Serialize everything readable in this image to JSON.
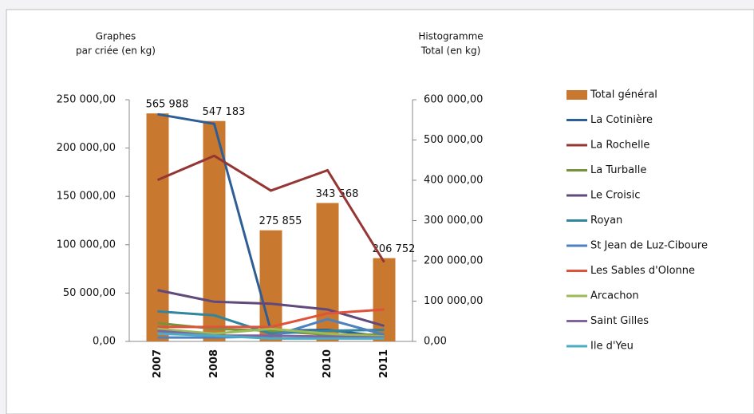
{
  "chart_data": {
    "type": "bar_line",
    "ylabel": [
      "Graphes",
      "par criée (en kg)"
    ],
    "y2label": [
      "Histogramme",
      "Total (en kg)"
    ],
    "categories": [
      "2007",
      "2008",
      "2009",
      "2010",
      "2011"
    ],
    "ylim": [
      0,
      250000
    ],
    "yticks": [
      {
        "value": 0,
        "label": "0,00"
      },
      {
        "value": 50000,
        "label": "50 000,00"
      },
      {
        "value": 100000,
        "label": "100 000,00"
      },
      {
        "value": 150000,
        "label": "150 000,00"
      },
      {
        "value": 200000,
        "label": "200 000,00"
      },
      {
        "value": 250000,
        "label": "250 000,00"
      }
    ],
    "y2lim": [
      0,
      600000
    ],
    "y2ticks": [
      {
        "value": 0,
        "label": "0,00"
      },
      {
        "value": 100000,
        "label": "100 000,00"
      },
      {
        "value": 200000,
        "label": "200 000,00"
      },
      {
        "value": 300000,
        "label": "300 000,00"
      },
      {
        "value": 400000,
        "label": "400 000,00"
      },
      {
        "value": 500000,
        "label": "500 000,00"
      },
      {
        "value": 600000,
        "label": "600 000,00"
      }
    ],
    "series": [
      {
        "name": "Total général",
        "kind": "bar",
        "axis": "y2",
        "color": "#c8782f",
        "values": [
          565988,
          547183,
          275855,
          343568,
          206752
        ],
        "value_labels": [
          "565 988",
          "547 183",
          "275 855",
          "343 568",
          "206 752"
        ]
      },
      {
        "name": "La Cotinière",
        "kind": "line",
        "color": "#2e5e96",
        "values": [
          235000,
          225000,
          11000,
          12000,
          5000
        ]
      },
      {
        "name": "La Rochelle",
        "kind": "line",
        "color": "#943634",
        "values": [
          167000,
          192000,
          156000,
          177000,
          82000
        ]
      },
      {
        "name": "La Turballe",
        "kind": "line",
        "color": "#76933c",
        "values": [
          19000,
          13000,
          11000,
          7000,
          7000
        ]
      },
      {
        "name": "Le Croisic",
        "kind": "line",
        "color": "#604a7b",
        "values": [
          53000,
          41000,
          39000,
          33000,
          16000
        ]
      },
      {
        "name": "Royan",
        "kind": "line",
        "color": "#31859c",
        "values": [
          31000,
          27000,
          8000,
          11000,
          12000
        ]
      },
      {
        "name": "St Jean de Luz-Ciboure",
        "kind": "line",
        "color": "#4f81bd",
        "values": [
          4000,
          4000,
          5000,
          23000,
          7000
        ]
      },
      {
        "name": "Les Sables d'Olonne",
        "kind": "line",
        "color": "#e0533a",
        "values": [
          15000,
          15000,
          15000,
          29000,
          33000
        ]
      },
      {
        "name": "Arcachon",
        "kind": "line",
        "color": "#9bbb59",
        "values": [
          13000,
          8000,
          13000,
          8000,
          5000
        ]
      },
      {
        "name": "Saint Gilles",
        "kind": "line",
        "color": "#8064a2",
        "values": [
          11000,
          6000,
          6000,
          5000,
          4000
        ]
      },
      {
        "name": "Ile d'Yeu",
        "kind": "line",
        "color": "#4bacc6",
        "values": [
          8000,
          6000,
          3000,
          3000,
          3000
        ]
      }
    ]
  }
}
